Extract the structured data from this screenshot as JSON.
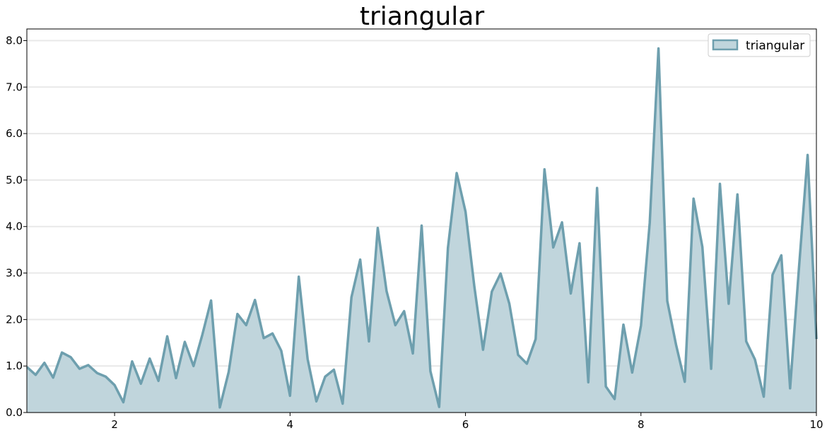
{
  "chart_data": {
    "type": "area",
    "title": "triangular",
    "xlabel": "",
    "ylabel": "",
    "xlim": [
      1,
      10
    ],
    "ylim": [
      0,
      8.25
    ],
    "x_ticks": [
      2,
      4,
      6,
      8,
      10
    ],
    "x_tick_labels": [
      "2",
      "4",
      "6",
      "8",
      "10"
    ],
    "y_ticks": [
      0,
      1,
      2,
      3,
      4,
      5,
      6,
      7,
      8
    ],
    "y_tick_labels": [
      "0.0",
      "1.0",
      "2.0",
      "3.0",
      "4.0",
      "5.0",
      "6.0",
      "7.0",
      "8.0"
    ],
    "grid": "horizontal",
    "legend_position": "top-right",
    "series": [
      {
        "name": "triangular",
        "color": "#6e9fae",
        "fill_color": "#c0d5dc",
        "x": [
          1.0,
          1.1,
          1.2,
          1.3,
          1.4,
          1.5,
          1.6,
          1.7,
          1.8,
          1.9,
          2.0,
          2.1,
          2.2,
          2.3,
          2.4,
          2.5,
          2.6,
          2.7,
          2.8,
          2.9,
          3.0,
          3.1,
          3.2,
          3.3,
          3.4,
          3.5,
          3.6,
          3.7,
          3.8,
          3.9,
          4.0,
          4.1,
          4.2,
          4.3,
          4.4,
          4.5,
          4.6,
          4.7,
          4.8,
          4.9,
          5.0,
          5.1,
          5.2,
          5.3,
          5.4,
          5.5,
          5.6,
          5.7,
          5.8,
          5.9,
          6.0,
          6.1,
          6.2,
          6.3,
          6.4,
          6.5,
          6.6,
          6.7,
          6.8,
          6.9,
          7.0,
          7.1,
          7.2,
          7.3,
          7.4,
          7.5,
          7.6,
          7.7,
          7.8,
          7.9,
          8.0,
          8.1,
          8.2,
          8.3,
          8.4,
          8.5,
          8.6,
          8.7,
          8.8,
          8.9,
          9.0,
          9.1,
          9.2,
          9.3,
          9.4,
          9.5,
          9.6,
          9.7,
          9.8,
          9.9,
          10.0
        ],
        "values": [
          0.98,
          0.81,
          1.07,
          0.75,
          1.29,
          1.19,
          0.94,
          1.02,
          0.85,
          0.77,
          0.59,
          0.22,
          1.1,
          0.62,
          1.16,
          0.68,
          1.64,
          0.74,
          1.52,
          1.0,
          1.67,
          2.41,
          0.11,
          0.87,
          2.12,
          1.88,
          2.42,
          1.6,
          1.7,
          1.33,
          0.36,
          2.92,
          1.15,
          0.24,
          0.77,
          0.92,
          0.19,
          2.48,
          3.29,
          1.53,
          3.97,
          2.61,
          1.88,
          2.18,
          1.27,
          4.02,
          0.89,
          0.12,
          3.54,
          5.15,
          4.32,
          2.72,
          1.35,
          2.6,
          2.99,
          2.34,
          1.24,
          1.05,
          1.58,
          5.23,
          3.55,
          4.09,
          2.56,
          3.64,
          0.65,
          4.83,
          0.56,
          0.29,
          1.89,
          0.86,
          1.87,
          4.08,
          7.83,
          2.4,
          1.46,
          0.66,
          4.6,
          3.56,
          0.94,
          4.92,
          2.34,
          4.69,
          1.53,
          1.14,
          0.34,
          2.96,
          3.38,
          0.52,
          3.08,
          5.54,
          1.58
        ]
      }
    ]
  }
}
